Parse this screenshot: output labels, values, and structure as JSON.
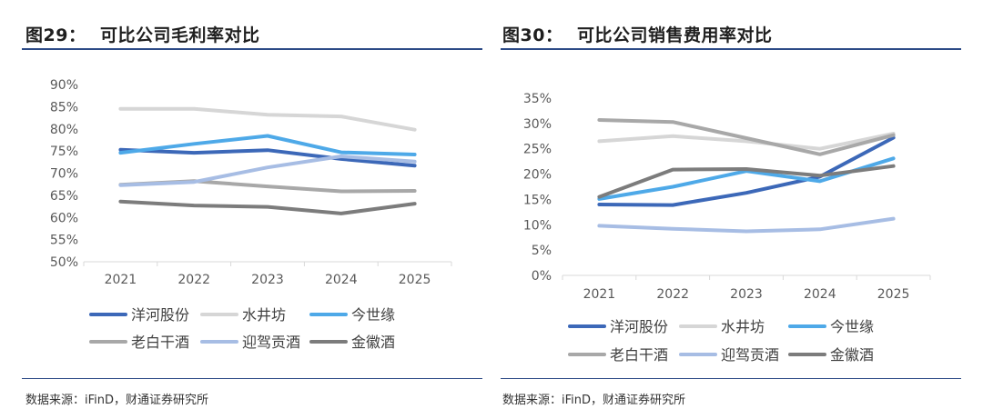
{
  "charts": [
    {
      "fig_no": "图29：",
      "title": "可比公司毛利率对比",
      "source": "数据来源：iFinD，财通证券研究所"
    },
    {
      "fig_no": "图30：",
      "title": "可比公司销售费用率对比",
      "source": "数据来源：iFinD，财通证券研究所"
    }
  ],
  "chart_data": [
    {
      "type": "line",
      "title": "可比公司毛利率对比",
      "x": [
        "2021",
        "2022",
        "2023",
        "2024",
        "2025"
      ],
      "ylim": [
        0.5,
        0.9
      ],
      "yticks": [
        "50%",
        "55%",
        "60%",
        "65%",
        "70%",
        "75%",
        "80%",
        "85%",
        "90%"
      ],
      "grid": false,
      "legend": "bottom",
      "series": [
        {
          "name": "洋河股份",
          "color": "#3c68b8",
          "values": [
            0.753,
            0.746,
            0.752,
            0.732,
            0.717
          ]
        },
        {
          "name": "水井坊",
          "color": "#d6d6d6",
          "values": [
            0.845,
            0.845,
            0.832,
            0.828,
            0.798
          ]
        },
        {
          "name": "今世缘",
          "color": "#4ea9e8",
          "values": [
            0.746,
            0.766,
            0.784,
            0.747,
            0.742
          ]
        },
        {
          "name": "老白干酒",
          "color": "#a8a8a8",
          "values": [
            0.674,
            0.682,
            0.67,
            0.659,
            0.66
          ]
        },
        {
          "name": "迎驾贡酒",
          "color": "#a7bde4",
          "values": [
            0.673,
            0.68,
            0.713,
            0.738,
            0.726
          ]
        },
        {
          "name": "金徽酒",
          "color": "#7c7c7c",
          "values": [
            0.636,
            0.627,
            0.624,
            0.609,
            0.631
          ]
        }
      ]
    },
    {
      "type": "line",
      "title": "可比公司销售费用率对比",
      "x": [
        "2021",
        "2022",
        "2023",
        "2024",
        "2025"
      ],
      "ylim": [
        0.0,
        0.35
      ],
      "yticks": [
        "0%",
        "5%",
        "10%",
        "15%",
        "20%",
        "25%",
        "30%",
        "35%"
      ],
      "grid": false,
      "legend": "bottom",
      "series": [
        {
          "name": "洋河股份",
          "color": "#3c68b8",
          "values": [
            0.14,
            0.139,
            0.163,
            0.195,
            0.272
          ]
        },
        {
          "name": "水井坊",
          "color": "#d6d6d6",
          "values": [
            0.265,
            0.275,
            0.265,
            0.25,
            0.28
          ]
        },
        {
          "name": "今世缘",
          "color": "#4ea9e8",
          "values": [
            0.151,
            0.175,
            0.206,
            0.186,
            0.231
          ]
        },
        {
          "name": "老白干酒",
          "color": "#a8a8a8",
          "values": [
            0.307,
            0.303,
            0.271,
            0.239,
            0.277
          ]
        },
        {
          "name": "迎驾贡酒",
          "color": "#a7bde4",
          "values": [
            0.098,
            0.092,
            0.087,
            0.091,
            0.112
          ]
        },
        {
          "name": "金徽酒",
          "color": "#7c7c7c",
          "values": [
            0.155,
            0.209,
            0.21,
            0.197,
            0.216
          ]
        }
      ]
    }
  ]
}
